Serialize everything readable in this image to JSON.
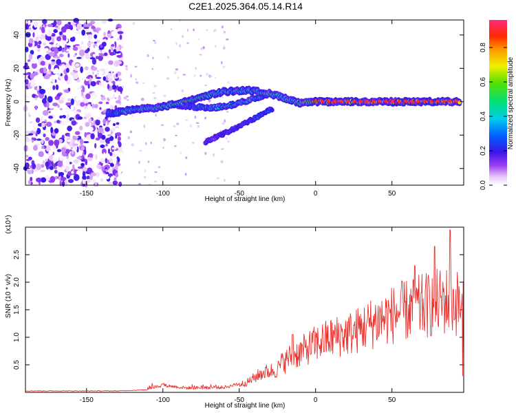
{
  "title": "C2E1.2025.364.05.14.R14",
  "colorbar": {
    "label": "Normalized spectral amplitude",
    "ticks": [
      "0.0",
      "0.2",
      "0.4",
      "0.6",
      "0.8"
    ],
    "tick_values": [
      0.0,
      0.2,
      0.4,
      0.6,
      0.8
    ],
    "range": [
      0,
      0.96
    ]
  },
  "colors": {
    "snr_line": "#e8322e"
  },
  "chart_data": [
    {
      "type": "heatmap",
      "name": "spectrogram",
      "title": "C2E1.2025.364.05.14.R14",
      "xlabel": "Height of straight line (km)",
      "ylabel": "Frequency (Hz)",
      "xlim": [
        -190,
        97
      ],
      "ylim": [
        -50,
        49
      ],
      "x_ticks": [
        -150,
        -100,
        -50,
        0,
        50
      ],
      "x_tick_labels": [
        "-150",
        "-100",
        "-50",
        "0",
        "50"
      ],
      "y_ticks": [
        -40,
        -20,
        0,
        20,
        40
      ],
      "y_tick_labels": [
        "-40",
        "-20",
        "0",
        "20",
        "40"
      ],
      "noise_region_x": [
        -190,
        -127
      ],
      "main_echo_trace": [
        {
          "x": -136,
          "y": -7,
          "amp": 0.35
        },
        {
          "x": -120,
          "y": -5,
          "amp": 0.45
        },
        {
          "x": -100,
          "y": -3,
          "amp": 0.5
        },
        {
          "x": -85,
          "y": 0,
          "amp": 0.55
        },
        {
          "x": -70,
          "y": 4,
          "amp": 0.5
        },
        {
          "x": -60,
          "y": 6,
          "amp": 0.45
        },
        {
          "x": -45,
          "y": 7,
          "amp": 0.45
        },
        {
          "x": -30,
          "y": 5,
          "amp": 0.5
        },
        {
          "x": -20,
          "y": 2,
          "amp": 0.45
        },
        {
          "x": -10,
          "y": -1,
          "amp": 0.6
        },
        {
          "x": 0,
          "y": 0,
          "amp": 0.85
        },
        {
          "x": 25,
          "y": 0,
          "amp": 0.9
        },
        {
          "x": 50,
          "y": 0,
          "amp": 0.92
        },
        {
          "x": 75,
          "y": 0,
          "amp": 0.92
        },
        {
          "x": 95,
          "y": 0,
          "amp": 0.85
        }
      ],
      "secondary_trace": [
        {
          "x": -90,
          "y": -2,
          "amp": 0.3
        },
        {
          "x": -70,
          "y": -4,
          "amp": 0.4
        },
        {
          "x": -55,
          "y": -2,
          "amp": 0.45
        },
        {
          "x": -40,
          "y": 2,
          "amp": 0.45
        },
        {
          "x": -30,
          "y": 5,
          "amp": 0.4
        }
      ],
      "faint_trace": [
        {
          "x": -72,
          "y": -24,
          "amp": 0.15
        },
        {
          "x": -55,
          "y": -17,
          "amp": 0.2
        },
        {
          "x": -40,
          "y": -10,
          "amp": 0.3
        },
        {
          "x": -28,
          "y": -4,
          "amp": 0.3
        }
      ]
    },
    {
      "type": "line",
      "name": "snr",
      "xlabel": "Height of straight line (km)",
      "ylabel": "SNR (10 * v/v)",
      "y_multiplier_label": "(x10⁴)",
      "xlim": [
        -190,
        97
      ],
      "ylim": [
        0,
        3.0
      ],
      "x_ticks": [
        -150,
        -100,
        -50,
        0,
        50
      ],
      "x_tick_labels": [
        "-150",
        "-100",
        "-50",
        "0",
        "50"
      ],
      "y_ticks": [
        0.5,
        1.0,
        1.5,
        2.0,
        2.5
      ],
      "y_tick_labels": [
        "0.5",
        "1.0",
        "1.5",
        "2.0",
        "2.5"
      ],
      "series": [
        {
          "name": "SNR",
          "envelope": [
            {
              "x": -190,
              "y": 0.02
            },
            {
              "x": -130,
              "y": 0.02
            },
            {
              "x": -110,
              "y": 0.04
            },
            {
              "x": -100,
              "y": 0.1
            },
            {
              "x": -85,
              "y": 0.05
            },
            {
              "x": -60,
              "y": 0.06
            },
            {
              "x": -45,
              "y": 0.15
            },
            {
              "x": -35,
              "y": 0.3
            },
            {
              "x": -25,
              "y": 0.35
            },
            {
              "x": -18,
              "y": 0.6
            },
            {
              "x": -10,
              "y": 0.7
            },
            {
              "x": 0,
              "y": 0.85
            },
            {
              "x": 10,
              "y": 0.95
            },
            {
              "x": 25,
              "y": 1.05
            },
            {
              "x": 40,
              "y": 1.25
            },
            {
              "x": 55,
              "y": 1.4
            },
            {
              "x": 70,
              "y": 1.5
            },
            {
              "x": 85,
              "y": 1.6
            },
            {
              "x": 95,
              "y": 1.55
            }
          ],
          "peak": {
            "x": 88,
            "y": 2.95
          },
          "max_spikes": [
            {
              "x": -100,
              "y": 0.15
            },
            {
              "x": -15,
              "y": 1.05
            },
            {
              "x": 65,
              "y": 2.3
            },
            {
              "x": 78,
              "y": 2.65
            },
            {
              "x": 88,
              "y": 2.95
            }
          ]
        }
      ]
    }
  ]
}
